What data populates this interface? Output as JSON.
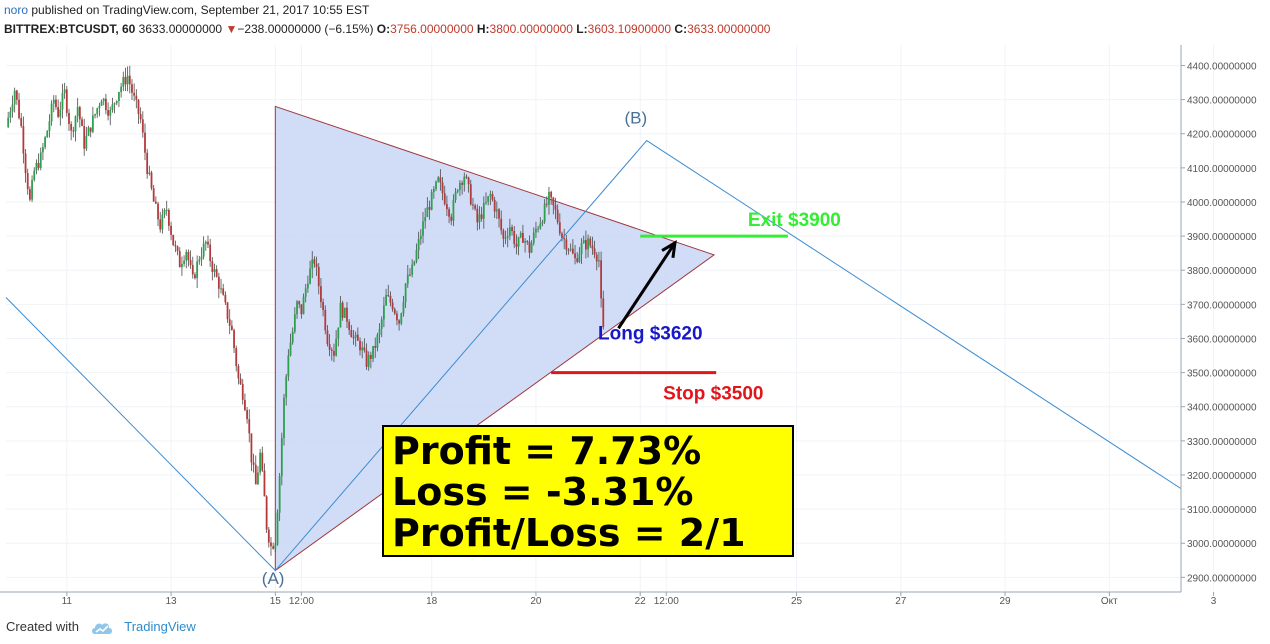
{
  "header": {
    "user": "noro",
    "published": " published on TradingView.com, September 21, 2017 10:55 EST",
    "symbol": "BITTREX:BTCUSDT, 60",
    "last": " 3633.00000000 ",
    "change": "−238.00000000 (−6.15%)",
    "o_label": " O:",
    "o_value": "3756.00000000",
    "h_label": " H:",
    "h_value": "3800.00000000",
    "l_label": " L:",
    "l_value": "3603.10900000",
    "c_label": " C:",
    "c_value": "3633.00000000"
  },
  "footer": {
    "created_with": "Created with",
    "brand": "TradingView"
  },
  "infobox": {
    "profit": "Profit = 7.73%",
    "loss": "Loss = -3.31%",
    "ratio": "Profit/Loss = 2/1"
  },
  "colors": {
    "up": "#2e9e4f",
    "down": "#b23a3a",
    "triangle_fill": "#c9d7f5",
    "triangle_stroke": "#a0383e",
    "wave": "#3d8bd0",
    "exit": "#33ee33",
    "stop": "#e0161a",
    "long": "#1818c8"
  },
  "chart_data": {
    "type": "candlestick",
    "symbol": "BITTREX:BTCUSDT",
    "interval": "60",
    "ylim": [
      2860,
      4460
    ],
    "y_ticks": [
      2900,
      3000,
      3100,
      3200,
      3300,
      3400,
      3500,
      3600,
      3700,
      3800,
      3900,
      4000,
      4100,
      4200,
      4300,
      4400
    ],
    "y_tick_labels": [
      "2900.00000000",
      "3000.00000000",
      "3100.00000000",
      "3200.00000000",
      "3300.00000000",
      "3400.00000000",
      "3500.00000000",
      "3600.00000000",
      "3700.00000000",
      "3800.00000000",
      "3900.00000000",
      "4000.00000000",
      "4100.00000000",
      "4200.00000000",
      "4300.00000000",
      "4400.00000000"
    ],
    "x_ticks": [
      {
        "label": "11",
        "t": 12
      },
      {
        "label": "13",
        "t": 60
      },
      {
        "label": "15",
        "t": 108
      },
      {
        "label": "12:00",
        "t": 120
      },
      {
        "label": "18",
        "t": 180
      },
      {
        "label": "20",
        "t": 228
      },
      {
        "label": "22",
        "t": 276
      },
      {
        "label": "12:00",
        "t": 288
      },
      {
        "label": "25",
        "t": 348
      },
      {
        "label": "27",
        "t": 396
      },
      {
        "label": "29",
        "t": 444
      },
      {
        "label": "Окт",
        "t": 492
      },
      {
        "label": "3",
        "t": 540
      }
    ],
    "xlim": [
      -16,
      525
    ],
    "close_path": [
      [
        -16,
        4220
      ],
      [
        -12,
        4330
      ],
      [
        -9,
        4220
      ],
      [
        -7,
        4100
      ],
      [
        -5,
        4000
      ],
      [
        -3,
        4090
      ],
      [
        0,
        4130
      ],
      [
        3,
        4210
      ],
      [
        6,
        4300
      ],
      [
        8,
        4260
      ],
      [
        11,
        4320
      ],
      [
        14,
        4200
      ],
      [
        17,
        4280
      ],
      [
        20,
        4170
      ],
      [
        24,
        4240
      ],
      [
        28,
        4310
      ],
      [
        32,
        4260
      ],
      [
        36,
        4330
      ],
      [
        40,
        4370
      ],
      [
        43,
        4300
      ],
      [
        46,
        4240
      ],
      [
        49,
        4100
      ],
      [
        52,
        4000
      ],
      [
        55,
        3930
      ],
      [
        58,
        3980
      ],
      [
        61,
        3880
      ],
      [
        64,
        3820
      ],
      [
        67,
        3860
      ],
      [
        70,
        3770
      ],
      [
        73,
        3840
      ],
      [
        76,
        3880
      ],
      [
        79,
        3810
      ],
      [
        82,
        3760
      ],
      [
        85,
        3690
      ],
      [
        88,
        3620
      ],
      [
        91,
        3480
      ],
      [
        93,
        3440
      ],
      [
        95,
        3380
      ],
      [
        97,
        3250
      ],
      [
        99,
        3170
      ],
      [
        101,
        3260
      ],
      [
        103,
        3130
      ],
      [
        104,
        3050
      ],
      [
        106,
        2990
      ],
      [
        108,
        3010
      ],
      [
        110,
        3200
      ],
      [
        112,
        3420
      ],
      [
        114,
        3560
      ],
      [
        116,
        3620
      ],
      [
        118,
        3700
      ],
      [
        120,
        3680
      ],
      [
        123,
        3780
      ],
      [
        126,
        3830
      ],
      [
        129,
        3720
      ],
      [
        132,
        3600
      ],
      [
        135,
        3560
      ],
      [
        138,
        3690
      ],
      [
        141,
        3660
      ],
      [
        144,
        3600
      ],
      [
        147,
        3580
      ],
      [
        150,
        3530
      ],
      [
        153,
        3560
      ],
      [
        156,
        3620
      ],
      [
        159,
        3720
      ],
      [
        162,
        3700
      ],
      [
        165,
        3650
      ],
      [
        168,
        3760
      ],
      [
        171,
        3800
      ],
      [
        174,
        3880
      ],
      [
        177,
        3960
      ],
      [
        180,
        4010
      ],
      [
        183,
        4060
      ],
      [
        186,
        4010
      ],
      [
        189,
        3960
      ],
      [
        192,
        4050
      ],
      [
        195,
        4080
      ],
      [
        198,
        4010
      ],
      [
        201,
        3940
      ],
      [
        204,
        3980
      ],
      [
        207,
        4020
      ],
      [
        210,
        3970
      ],
      [
        213,
        3890
      ],
      [
        216,
        3930
      ],
      [
        219,
        3870
      ],
      [
        222,
        3900
      ],
      [
        225,
        3860
      ],
      [
        228,
        3920
      ],
      [
        231,
        3960
      ],
      [
        234,
        4010
      ],
      [
        237,
        3970
      ],
      [
        240,
        3900
      ],
      [
        243,
        3870
      ],
      [
        246,
        3830
      ],
      [
        249,
        3870
      ],
      [
        252,
        3880
      ],
      [
        255,
        3860
      ],
      [
        257,
        3830
      ],
      [
        258,
        3700
      ],
      [
        259,
        3633
      ]
    ],
    "triangle": [
      [
        108,
        4280
      ],
      [
        108,
        2920
      ],
      [
        310,
        3845
      ]
    ],
    "wave_lines": [
      [
        [
          -16,
          3720
        ],
        [
          108,
          2920
        ],
        [
          279,
          4180
        ],
        [
          525,
          3160
        ]
      ]
    ],
    "wave_labels": [
      {
        "text": "(A)",
        "t": 107,
        "y": 2880
      },
      {
        "text": "(B)",
        "t": 274,
        "y": 4230
      }
    ],
    "levels": {
      "exit": {
        "text": "Exit $3900",
        "price": 3900,
        "t0": 276,
        "t1": 344
      },
      "stop": {
        "text": "Stop $3500",
        "price": 3500,
        "t0": 235,
        "t1": 311
      },
      "long": {
        "text": "Long $3620",
        "price": 3620
      }
    },
    "arrow": {
      "from": [
        266,
        3630
      ],
      "to": [
        292,
        3880
      ]
    }
  }
}
